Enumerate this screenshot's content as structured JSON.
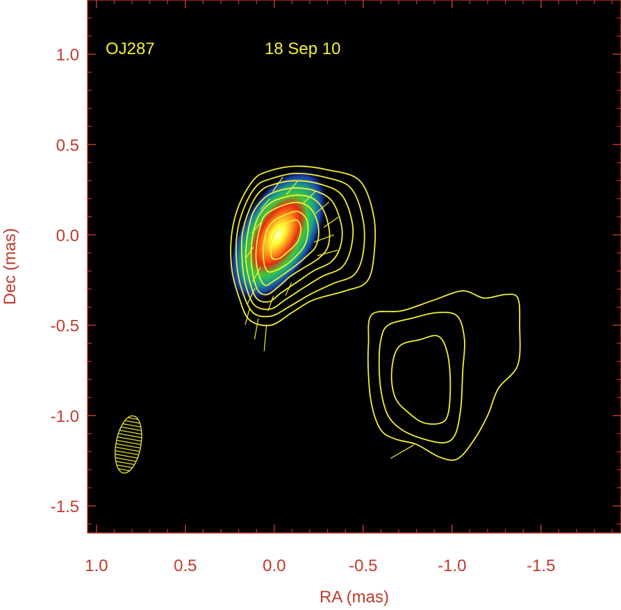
{
  "chart_data": {
    "type": "heatmap",
    "title": "",
    "annotations": {
      "source": "OJ287",
      "date": "18 Sep 10"
    },
    "xlabel": "RA (mas)",
    "ylabel": "Dec (mas)",
    "xlim": [
      1.05,
      -1.95
    ],
    "ylim": [
      -1.65,
      1.3
    ],
    "x_ticks": [
      1.0,
      0.5,
      0.0,
      -0.5,
      -1.0,
      -1.5
    ],
    "x_tick_labels": [
      "1.0",
      "0.5",
      "0.0",
      "-0.5",
      "-1.0",
      "-1.5"
    ],
    "y_ticks": [
      1.0,
      0.5,
      0.0,
      -0.5,
      -1.0,
      -1.5
    ],
    "y_tick_labels": [
      "1.0",
      "0.5",
      "0.0",
      "-0.5",
      "-1.0",
      "-1.5"
    ],
    "grid": false,
    "colors": {
      "axes": "#c0392b",
      "background": "#000000",
      "contours": "#f5f032",
      "annotation": "#f5f032"
    },
    "core_component": {
      "ra": -0.02,
      "dec": 0.0,
      "peak_color": "#ffff33"
    },
    "beam": {
      "ra": 0.82,
      "dec": -1.16,
      "major_mas": 0.32,
      "minor_mas": 0.14,
      "pa_deg": -10
    },
    "core_contours": [
      {
        "level": 1,
        "pts": [
          [
            0.04,
            0.35
          ],
          [
            -0.12,
            0.38
          ],
          [
            -0.3,
            0.36
          ],
          [
            -0.48,
            0.3
          ],
          [
            -0.56,
            0.1
          ],
          [
            -0.56,
            -0.12
          ],
          [
            -0.52,
            -0.26
          ],
          [
            -0.4,
            -0.31
          ],
          [
            -0.22,
            -0.36
          ],
          [
            -0.1,
            -0.43
          ],
          [
            0.02,
            -0.5
          ],
          [
            0.14,
            -0.47
          ],
          [
            0.2,
            -0.34
          ],
          [
            0.24,
            -0.18
          ],
          [
            0.24,
            0.0
          ],
          [
            0.2,
            0.16
          ],
          [
            0.12,
            0.3
          ]
        ]
      },
      {
        "level": 2,
        "pts": [
          [
            0.02,
            0.31
          ],
          [
            -0.12,
            0.34
          ],
          [
            -0.28,
            0.32
          ],
          [
            -0.43,
            0.26
          ],
          [
            -0.5,
            0.08
          ],
          [
            -0.5,
            -0.1
          ],
          [
            -0.45,
            -0.22
          ],
          [
            -0.33,
            -0.27
          ],
          [
            -0.2,
            -0.33
          ],
          [
            -0.08,
            -0.4
          ],
          [
            0.02,
            -0.45
          ],
          [
            0.12,
            -0.43
          ],
          [
            0.18,
            -0.31
          ],
          [
            0.21,
            -0.17
          ],
          [
            0.21,
            0.0
          ],
          [
            0.17,
            0.15
          ],
          [
            0.1,
            0.27
          ]
        ]
      },
      {
        "level": 3,
        "pts": [
          [
            0.0,
            0.28
          ],
          [
            -0.12,
            0.3
          ],
          [
            -0.26,
            0.28
          ],
          [
            -0.38,
            0.22
          ],
          [
            -0.44,
            0.06
          ],
          [
            -0.43,
            -0.08
          ],
          [
            -0.38,
            -0.18
          ],
          [
            -0.27,
            -0.23
          ],
          [
            -0.17,
            -0.29
          ],
          [
            -0.06,
            -0.36
          ],
          [
            0.02,
            -0.41
          ],
          [
            0.11,
            -0.39
          ],
          [
            0.16,
            -0.28
          ],
          [
            0.18,
            -0.15
          ],
          [
            0.18,
            0.0
          ],
          [
            0.14,
            0.14
          ],
          [
            0.08,
            0.24
          ]
        ]
      },
      {
        "level": 4,
        "pts": [
          [
            -0.01,
            0.24
          ],
          [
            -0.12,
            0.26
          ],
          [
            -0.24,
            0.24
          ],
          [
            -0.33,
            0.18
          ],
          [
            -0.38,
            0.04
          ],
          [
            -0.37,
            -0.07
          ],
          [
            -0.32,
            -0.15
          ],
          [
            -0.22,
            -0.2
          ],
          [
            -0.13,
            -0.26
          ],
          [
            -0.04,
            -0.32
          ],
          [
            0.03,
            -0.37
          ],
          [
            0.1,
            -0.35
          ],
          [
            0.14,
            -0.25
          ],
          [
            0.16,
            -0.13
          ],
          [
            0.15,
            0.0
          ],
          [
            0.12,
            0.12
          ],
          [
            0.06,
            0.2
          ]
        ]
      },
      {
        "level": 5,
        "pts": [
          [
            -0.03,
            0.2
          ],
          [
            -0.13,
            0.22
          ],
          [
            -0.22,
            0.2
          ],
          [
            -0.28,
            0.13
          ],
          [
            -0.31,
            0.02
          ],
          [
            -0.3,
            -0.07
          ],
          [
            -0.25,
            -0.13
          ],
          [
            -0.17,
            -0.18
          ],
          [
            -0.09,
            -0.23
          ],
          [
            -0.02,
            -0.29
          ],
          [
            0.04,
            -0.33
          ],
          [
            0.09,
            -0.31
          ],
          [
            0.12,
            -0.22
          ],
          [
            0.13,
            -0.11
          ],
          [
            0.12,
            0.0
          ],
          [
            0.09,
            0.1
          ],
          [
            0.03,
            0.17
          ]
        ]
      },
      {
        "level": 6,
        "pts": [
          [
            -0.04,
            0.16
          ],
          [
            -0.13,
            0.18
          ],
          [
            -0.2,
            0.15
          ],
          [
            -0.24,
            0.08
          ],
          [
            -0.25,
            0.0
          ],
          [
            -0.23,
            -0.07
          ],
          [
            -0.18,
            -0.12
          ],
          [
            -0.12,
            -0.17
          ],
          [
            -0.05,
            -0.22
          ],
          [
            0.01,
            -0.26
          ],
          [
            0.05,
            -0.28
          ],
          [
            0.08,
            -0.24
          ],
          [
            0.1,
            -0.16
          ],
          [
            0.1,
            -0.06
          ],
          [
            0.08,
            0.04
          ],
          [
            0.05,
            0.11
          ]
        ]
      },
      {
        "level": 7,
        "pts": [
          [
            -0.06,
            0.11
          ],
          [
            -0.13,
            0.13
          ],
          [
            -0.18,
            0.09
          ],
          [
            -0.19,
            0.02
          ],
          [
            -0.17,
            -0.06
          ],
          [
            -0.12,
            -0.12
          ],
          [
            -0.06,
            -0.17
          ],
          [
            0.0,
            -0.2
          ],
          [
            0.04,
            -0.2
          ],
          [
            0.06,
            -0.14
          ],
          [
            0.06,
            -0.06
          ],
          [
            0.04,
            0.03
          ],
          [
            0.0,
            0.08
          ]
        ]
      },
      {
        "level": 8,
        "pts": [
          [
            -0.08,
            0.07
          ],
          [
            -0.13,
            0.08
          ],
          [
            -0.15,
            0.03
          ],
          [
            -0.13,
            -0.04
          ],
          [
            -0.08,
            -0.09
          ],
          [
            -0.03,
            -0.13
          ],
          [
            0.01,
            -0.13
          ],
          [
            0.02,
            -0.08
          ],
          [
            0.01,
            -0.02
          ],
          [
            -0.02,
            0.03
          ]
        ]
      }
    ],
    "knot_contours": [
      {
        "level": 1,
        "pts": [
          [
            -0.55,
            -0.44
          ],
          [
            -0.72,
            -0.42
          ],
          [
            -0.9,
            -0.36
          ],
          [
            -1.06,
            -0.31
          ],
          [
            -1.18,
            -0.35
          ],
          [
            -1.3,
            -0.33
          ],
          [
            -1.37,
            -0.35
          ],
          [
            -1.38,
            -0.5
          ],
          [
            -1.37,
            -0.72
          ],
          [
            -1.26,
            -0.85
          ],
          [
            -1.2,
            -1.0
          ],
          [
            -1.12,
            -1.14
          ],
          [
            -1.03,
            -1.24
          ],
          [
            -0.93,
            -1.23
          ],
          [
            -0.8,
            -1.16
          ],
          [
            -0.68,
            -1.13
          ],
          [
            -0.6,
            -1.08
          ],
          [
            -0.55,
            -0.95
          ],
          [
            -0.53,
            -0.78
          ],
          [
            -0.53,
            -0.6
          ]
        ]
      },
      {
        "level": 2,
        "pts": [
          [
            -0.64,
            -0.5
          ],
          [
            -0.78,
            -0.46
          ],
          [
            -0.92,
            -0.43
          ],
          [
            -1.03,
            -0.45
          ],
          [
            -1.07,
            -0.58
          ],
          [
            -1.06,
            -0.75
          ],
          [
            -1.05,
            -0.95
          ],
          [
            -1.02,
            -1.1
          ],
          [
            -0.96,
            -1.15
          ],
          [
            -0.84,
            -1.13
          ],
          [
            -0.72,
            -1.08
          ],
          [
            -0.64,
            -1.0
          ],
          [
            -0.6,
            -0.86
          ],
          [
            -0.59,
            -0.7
          ],
          [
            -0.6,
            -0.58
          ]
        ]
      },
      {
        "level": 3,
        "pts": [
          [
            -0.7,
            -0.62
          ],
          [
            -0.82,
            -0.58
          ],
          [
            -0.92,
            -0.56
          ],
          [
            -0.97,
            -0.64
          ],
          [
            -0.99,
            -0.8
          ],
          [
            -0.98,
            -0.98
          ],
          [
            -0.94,
            -1.04
          ],
          [
            -0.84,
            -1.04
          ],
          [
            -0.75,
            -0.98
          ],
          [
            -0.68,
            -0.9
          ],
          [
            -0.66,
            -0.76
          ]
        ]
      }
    ],
    "polarization_vectors": [
      {
        "ra": 0.1,
        "dec": -0.52,
        "angle_deg": 10,
        "length_mas": 0.12
      },
      {
        "ra": 0.05,
        "dec": -0.57,
        "angle_deg": 5,
        "length_mas": 0.15
      },
      {
        "ra": 0.15,
        "dec": -0.45,
        "angle_deg": 15,
        "length_mas": 0.1
      },
      {
        "ra": 0.13,
        "dec": -0.34,
        "angle_deg": 25,
        "length_mas": 0.1
      },
      {
        "ra": 0.1,
        "dec": -0.22,
        "angle_deg": 30,
        "length_mas": 0.09
      },
      {
        "ra": 0.14,
        "dec": -0.1,
        "angle_deg": 35,
        "length_mas": 0.08
      },
      {
        "ra": 0.1,
        "dec": 0.04,
        "angle_deg": 40,
        "length_mas": 0.08
      },
      {
        "ra": 0.05,
        "dec": 0.17,
        "angle_deg": 40,
        "length_mas": 0.08
      },
      {
        "ra": -0.02,
        "dec": 0.28,
        "angle_deg": 35,
        "length_mas": 0.1
      },
      {
        "ra": -0.1,
        "dec": 0.26,
        "angle_deg": 40,
        "length_mas": 0.1
      },
      {
        "ra": -0.2,
        "dec": 0.21,
        "angle_deg": 45,
        "length_mas": 0.1
      },
      {
        "ra": -0.27,
        "dec": 0.15,
        "angle_deg": 50,
        "length_mas": 0.1
      },
      {
        "ra": -0.32,
        "dec": 0.07,
        "angle_deg": 55,
        "length_mas": 0.1
      },
      {
        "ra": -0.28,
        "dec": -0.02,
        "angle_deg": 70,
        "length_mas": 0.12
      },
      {
        "ra": -0.3,
        "dec": -0.1,
        "angle_deg": 75,
        "length_mas": 0.12
      },
      {
        "ra": 0.02,
        "dec": -0.38,
        "angle_deg": 20,
        "length_mas": 0.09
      },
      {
        "ra": -0.08,
        "dec": -0.3,
        "angle_deg": 25,
        "length_mas": 0.08
      },
      {
        "ra": -0.72,
        "dec": -1.2,
        "angle_deg": 60,
        "length_mas": 0.15
      }
    ]
  }
}
